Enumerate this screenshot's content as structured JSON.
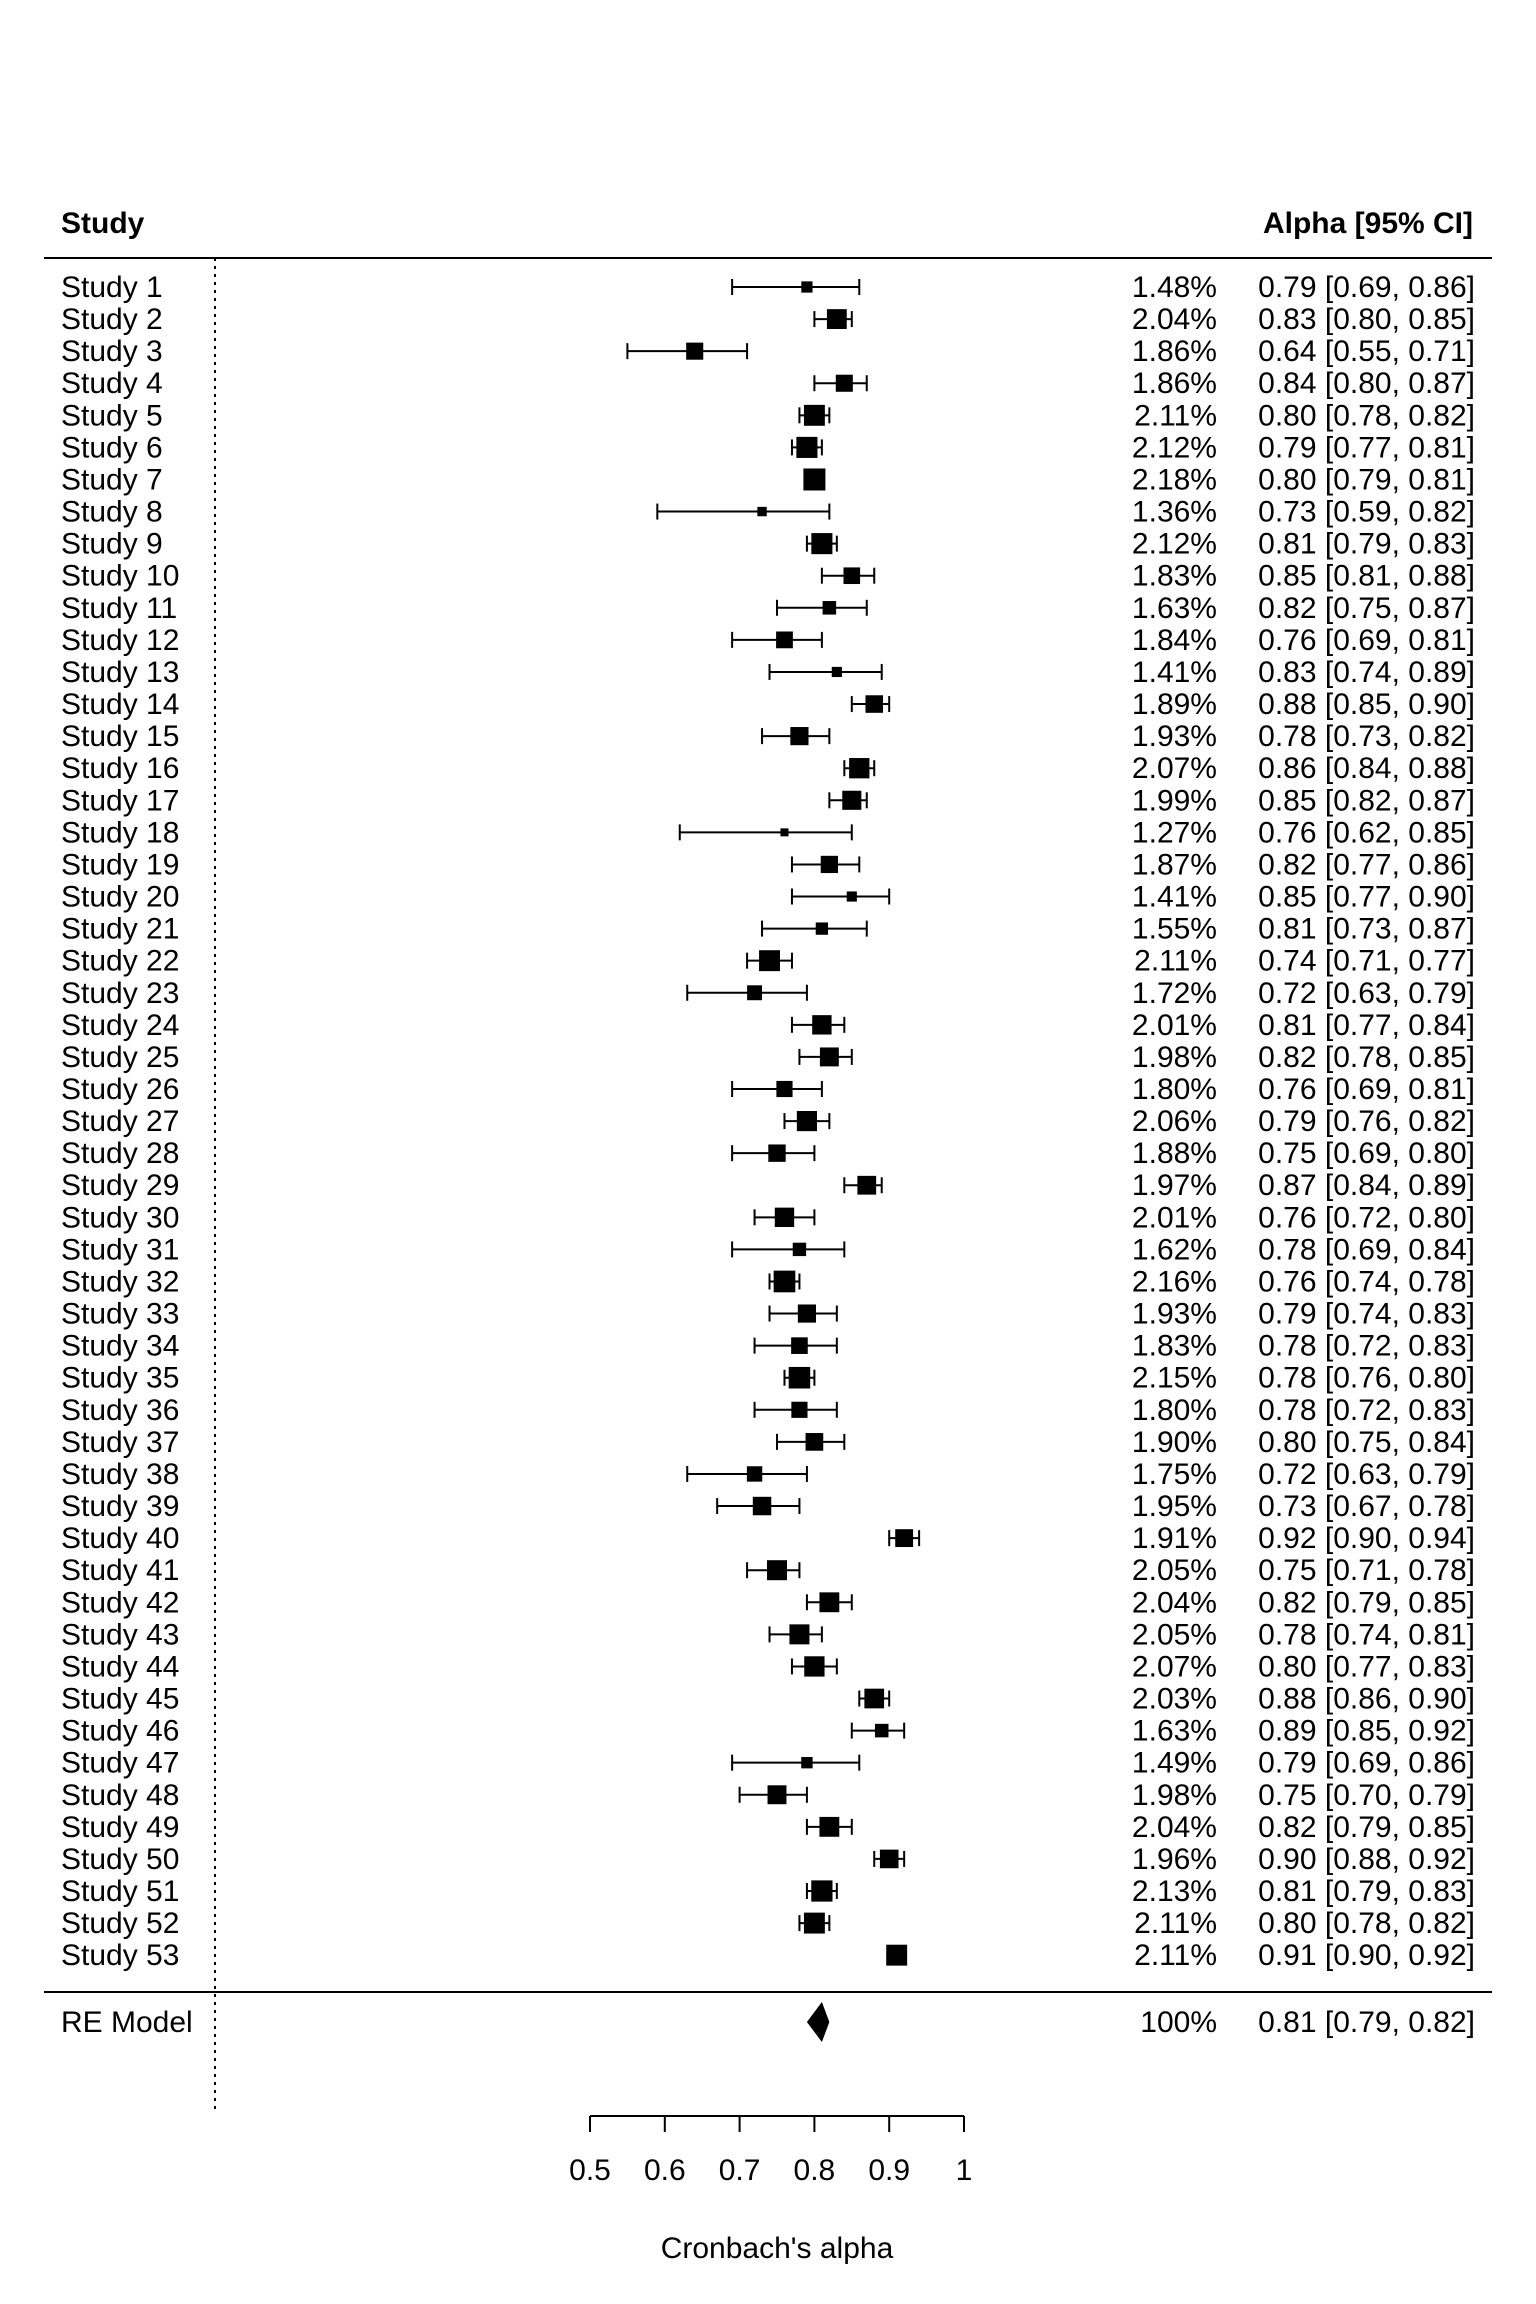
{
  "chart_data": {
    "type": "forest",
    "header": {
      "study": "Study",
      "estimate": "Alpha [95% CI]"
    },
    "xlabel": "Cronbach's alpha",
    "xlim": [
      0.5,
      1.0
    ],
    "xticks": [
      "0.5",
      "0.6",
      "0.7",
      "0.8",
      "0.9",
      "1"
    ],
    "rows": [
      {
        "study": "Study 1",
        "weight": "1.48%",
        "est": 0.79,
        "lo": 0.69,
        "hi": 0.86,
        "text": "0.79 [0.69, 0.86]"
      },
      {
        "study": "Study 2",
        "weight": "2.04%",
        "est": 0.83,
        "lo": 0.8,
        "hi": 0.85,
        "text": "0.83 [0.80, 0.85]"
      },
      {
        "study": "Study 3",
        "weight": "1.86%",
        "est": 0.64,
        "lo": 0.55,
        "hi": 0.71,
        "text": "0.64 [0.55, 0.71]"
      },
      {
        "study": "Study 4",
        "weight": "1.86%",
        "est": 0.84,
        "lo": 0.8,
        "hi": 0.87,
        "text": "0.84 [0.80, 0.87]"
      },
      {
        "study": "Study 5",
        "weight": "2.11%",
        "est": 0.8,
        "lo": 0.78,
        "hi": 0.82,
        "text": "0.80 [0.78, 0.82]"
      },
      {
        "study": "Study 6",
        "weight": "2.12%",
        "est": 0.79,
        "lo": 0.77,
        "hi": 0.81,
        "text": "0.79 [0.77, 0.81]"
      },
      {
        "study": "Study 7",
        "weight": "2.18%",
        "est": 0.8,
        "lo": 0.79,
        "hi": 0.81,
        "text": "0.80 [0.79, 0.81]"
      },
      {
        "study": "Study 8",
        "weight": "1.36%",
        "est": 0.73,
        "lo": 0.59,
        "hi": 0.82,
        "text": "0.73 [0.59, 0.82]"
      },
      {
        "study": "Study 9",
        "weight": "2.12%",
        "est": 0.81,
        "lo": 0.79,
        "hi": 0.83,
        "text": "0.81 [0.79, 0.83]"
      },
      {
        "study": "Study 10",
        "weight": "1.83%",
        "est": 0.85,
        "lo": 0.81,
        "hi": 0.88,
        "text": "0.85 [0.81, 0.88]"
      },
      {
        "study": "Study 11",
        "weight": "1.63%",
        "est": 0.82,
        "lo": 0.75,
        "hi": 0.87,
        "text": "0.82 [0.75, 0.87]"
      },
      {
        "study": "Study 12",
        "weight": "1.84%",
        "est": 0.76,
        "lo": 0.69,
        "hi": 0.81,
        "text": "0.76 [0.69, 0.81]"
      },
      {
        "study": "Study 13",
        "weight": "1.41%",
        "est": 0.83,
        "lo": 0.74,
        "hi": 0.89,
        "text": "0.83 [0.74, 0.89]"
      },
      {
        "study": "Study 14",
        "weight": "1.89%",
        "est": 0.88,
        "lo": 0.85,
        "hi": 0.9,
        "text": "0.88 [0.85, 0.90]"
      },
      {
        "study": "Study 15",
        "weight": "1.93%",
        "est": 0.78,
        "lo": 0.73,
        "hi": 0.82,
        "text": "0.78 [0.73, 0.82]"
      },
      {
        "study": "Study 16",
        "weight": "2.07%",
        "est": 0.86,
        "lo": 0.84,
        "hi": 0.88,
        "text": "0.86 [0.84, 0.88]"
      },
      {
        "study": "Study 17",
        "weight": "1.99%",
        "est": 0.85,
        "lo": 0.82,
        "hi": 0.87,
        "text": "0.85 [0.82, 0.87]"
      },
      {
        "study": "Study 18",
        "weight": "1.27%",
        "est": 0.76,
        "lo": 0.62,
        "hi": 0.85,
        "text": "0.76 [0.62, 0.85]"
      },
      {
        "study": "Study 19",
        "weight": "1.87%",
        "est": 0.82,
        "lo": 0.77,
        "hi": 0.86,
        "text": "0.82 [0.77, 0.86]"
      },
      {
        "study": "Study 20",
        "weight": "1.41%",
        "est": 0.85,
        "lo": 0.77,
        "hi": 0.9,
        "text": "0.85 [0.77, 0.90]"
      },
      {
        "study": "Study 21",
        "weight": "1.55%",
        "est": 0.81,
        "lo": 0.73,
        "hi": 0.87,
        "text": "0.81 [0.73, 0.87]"
      },
      {
        "study": "Study 22",
        "weight": "2.11%",
        "est": 0.74,
        "lo": 0.71,
        "hi": 0.77,
        "text": "0.74 [0.71, 0.77]"
      },
      {
        "study": "Study 23",
        "weight": "1.72%",
        "est": 0.72,
        "lo": 0.63,
        "hi": 0.79,
        "text": "0.72 [0.63, 0.79]"
      },
      {
        "study": "Study 24",
        "weight": "2.01%",
        "est": 0.81,
        "lo": 0.77,
        "hi": 0.84,
        "text": "0.81 [0.77, 0.84]"
      },
      {
        "study": "Study 25",
        "weight": "1.98%",
        "est": 0.82,
        "lo": 0.78,
        "hi": 0.85,
        "text": "0.82 [0.78, 0.85]"
      },
      {
        "study": "Study 26",
        "weight": "1.80%",
        "est": 0.76,
        "lo": 0.69,
        "hi": 0.81,
        "text": "0.76 [0.69, 0.81]"
      },
      {
        "study": "Study 27",
        "weight": "2.06%",
        "est": 0.79,
        "lo": 0.76,
        "hi": 0.82,
        "text": "0.79 [0.76, 0.82]"
      },
      {
        "study": "Study 28",
        "weight": "1.88%",
        "est": 0.75,
        "lo": 0.69,
        "hi": 0.8,
        "text": "0.75 [0.69, 0.80]"
      },
      {
        "study": "Study 29",
        "weight": "1.97%",
        "est": 0.87,
        "lo": 0.84,
        "hi": 0.89,
        "text": "0.87 [0.84, 0.89]"
      },
      {
        "study": "Study 30",
        "weight": "2.01%",
        "est": 0.76,
        "lo": 0.72,
        "hi": 0.8,
        "text": "0.76 [0.72, 0.80]"
      },
      {
        "study": "Study 31",
        "weight": "1.62%",
        "est": 0.78,
        "lo": 0.69,
        "hi": 0.84,
        "text": "0.78 [0.69, 0.84]"
      },
      {
        "study": "Study 32",
        "weight": "2.16%",
        "est": 0.76,
        "lo": 0.74,
        "hi": 0.78,
        "text": "0.76 [0.74, 0.78]"
      },
      {
        "study": "Study 33",
        "weight": "1.93%",
        "est": 0.79,
        "lo": 0.74,
        "hi": 0.83,
        "text": "0.79 [0.74, 0.83]"
      },
      {
        "study": "Study 34",
        "weight": "1.83%",
        "est": 0.78,
        "lo": 0.72,
        "hi": 0.83,
        "text": "0.78 [0.72, 0.83]"
      },
      {
        "study": "Study 35",
        "weight": "2.15%",
        "est": 0.78,
        "lo": 0.76,
        "hi": 0.8,
        "text": "0.78 [0.76, 0.80]"
      },
      {
        "study": "Study 36",
        "weight": "1.80%",
        "est": 0.78,
        "lo": 0.72,
        "hi": 0.83,
        "text": "0.78 [0.72, 0.83]"
      },
      {
        "study": "Study 37",
        "weight": "1.90%",
        "est": 0.8,
        "lo": 0.75,
        "hi": 0.84,
        "text": "0.80 [0.75, 0.84]"
      },
      {
        "study": "Study 38",
        "weight": "1.75%",
        "est": 0.72,
        "lo": 0.63,
        "hi": 0.79,
        "text": "0.72 [0.63, 0.79]"
      },
      {
        "study": "Study 39",
        "weight": "1.95%",
        "est": 0.73,
        "lo": 0.67,
        "hi": 0.78,
        "text": "0.73 [0.67, 0.78]"
      },
      {
        "study": "Study 40",
        "weight": "1.91%",
        "est": 0.92,
        "lo": 0.9,
        "hi": 0.94,
        "text": "0.92 [0.90, 0.94]"
      },
      {
        "study": "Study 41",
        "weight": "2.05%",
        "est": 0.75,
        "lo": 0.71,
        "hi": 0.78,
        "text": "0.75 [0.71, 0.78]"
      },
      {
        "study": "Study 42",
        "weight": "2.04%",
        "est": 0.82,
        "lo": 0.79,
        "hi": 0.85,
        "text": "0.82 [0.79, 0.85]"
      },
      {
        "study": "Study 43",
        "weight": "2.05%",
        "est": 0.78,
        "lo": 0.74,
        "hi": 0.81,
        "text": "0.78 [0.74, 0.81]"
      },
      {
        "study": "Study 44",
        "weight": "2.07%",
        "est": 0.8,
        "lo": 0.77,
        "hi": 0.83,
        "text": "0.80 [0.77, 0.83]"
      },
      {
        "study": "Study 45",
        "weight": "2.03%",
        "est": 0.88,
        "lo": 0.86,
        "hi": 0.9,
        "text": "0.88 [0.86, 0.90]"
      },
      {
        "study": "Study 46",
        "weight": "1.63%",
        "est": 0.89,
        "lo": 0.85,
        "hi": 0.92,
        "text": "0.89 [0.85, 0.92]"
      },
      {
        "study": "Study 47",
        "weight": "1.49%",
        "est": 0.79,
        "lo": 0.69,
        "hi": 0.86,
        "text": "0.79 [0.69, 0.86]"
      },
      {
        "study": "Study 48",
        "weight": "1.98%",
        "est": 0.75,
        "lo": 0.7,
        "hi": 0.79,
        "text": "0.75 [0.70, 0.79]"
      },
      {
        "study": "Study 49",
        "weight": "2.04%",
        "est": 0.82,
        "lo": 0.79,
        "hi": 0.85,
        "text": "0.82 [0.79, 0.85]"
      },
      {
        "study": "Study 50",
        "weight": "1.96%",
        "est": 0.9,
        "lo": 0.88,
        "hi": 0.92,
        "text": "0.90 [0.88, 0.92]"
      },
      {
        "study": "Study 51",
        "weight": "2.13%",
        "est": 0.81,
        "lo": 0.79,
        "hi": 0.83,
        "text": "0.81 [0.79, 0.83]"
      },
      {
        "study": "Study 52",
        "weight": "2.11%",
        "est": 0.8,
        "lo": 0.78,
        "hi": 0.82,
        "text": "0.80 [0.78, 0.82]"
      },
      {
        "study": "Study 53",
        "weight": "2.11%",
        "est": 0.91,
        "lo": 0.9,
        "hi": 0.92,
        "text": "0.91 [0.90, 0.92]"
      }
    ],
    "summary": {
      "study": "RE Model",
      "weight": "100%",
      "est": 0.81,
      "lo": 0.79,
      "hi": 0.82,
      "text": "0.81 [0.79, 0.82]"
    }
  }
}
